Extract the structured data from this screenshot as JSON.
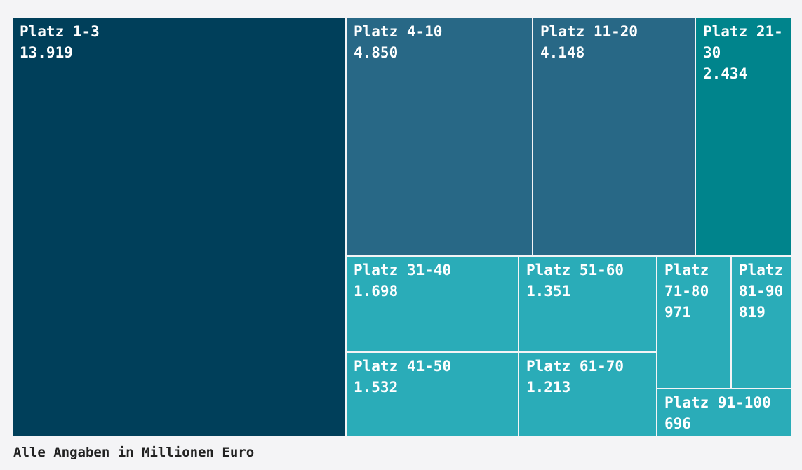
{
  "chart_data": {
    "type": "treemap",
    "title": "",
    "unit_note": "Alle Angaben in Millionen Euro",
    "value_labels_as_shown": [
      "13.919",
      "4.850",
      "4.148",
      "2.434",
      "1.698",
      "1.532",
      "1.351",
      "1.213",
      "971",
      "819",
      "696"
    ],
    "items": [
      {
        "label": "Platz 1-3",
        "value": 13919,
        "value_text": "13.919",
        "color": "#003f5a"
      },
      {
        "label": "Platz 4-10",
        "value": 4850,
        "value_text": "4.850",
        "color": "#286886"
      },
      {
        "label": "Platz 11-20",
        "value": 4148,
        "value_text": "4.148",
        "color": "#286886"
      },
      {
        "label": "Platz 21-30",
        "value": 2434,
        "value_text": "2.434",
        "color": "#00848c"
      },
      {
        "label": "Platz 31-40",
        "value": 1698,
        "value_text": "1.698",
        "color": "#2aacb8"
      },
      {
        "label": "Platz 41-50",
        "value": 1532,
        "value_text": "1.532",
        "color": "#2aacb8"
      },
      {
        "label": "Platz 51-60",
        "value": 1351,
        "value_text": "1.351",
        "color": "#2aacb8"
      },
      {
        "label": "Platz 61-70",
        "value": 1213,
        "value_text": "1.213",
        "color": "#2aacb8"
      },
      {
        "label": "Platz 71-80",
        "value": 971,
        "value_text": "971",
        "color": "#2aacb8"
      },
      {
        "label": "Platz 81-90",
        "value": 819,
        "value_text": "819",
        "color": "#2aacb8"
      },
      {
        "label": "Platz 91-100",
        "value": 696,
        "value_text": "696",
        "color": "#2aacb8"
      }
    ]
  },
  "footnote": "Alle Angaben in Millionen Euro"
}
